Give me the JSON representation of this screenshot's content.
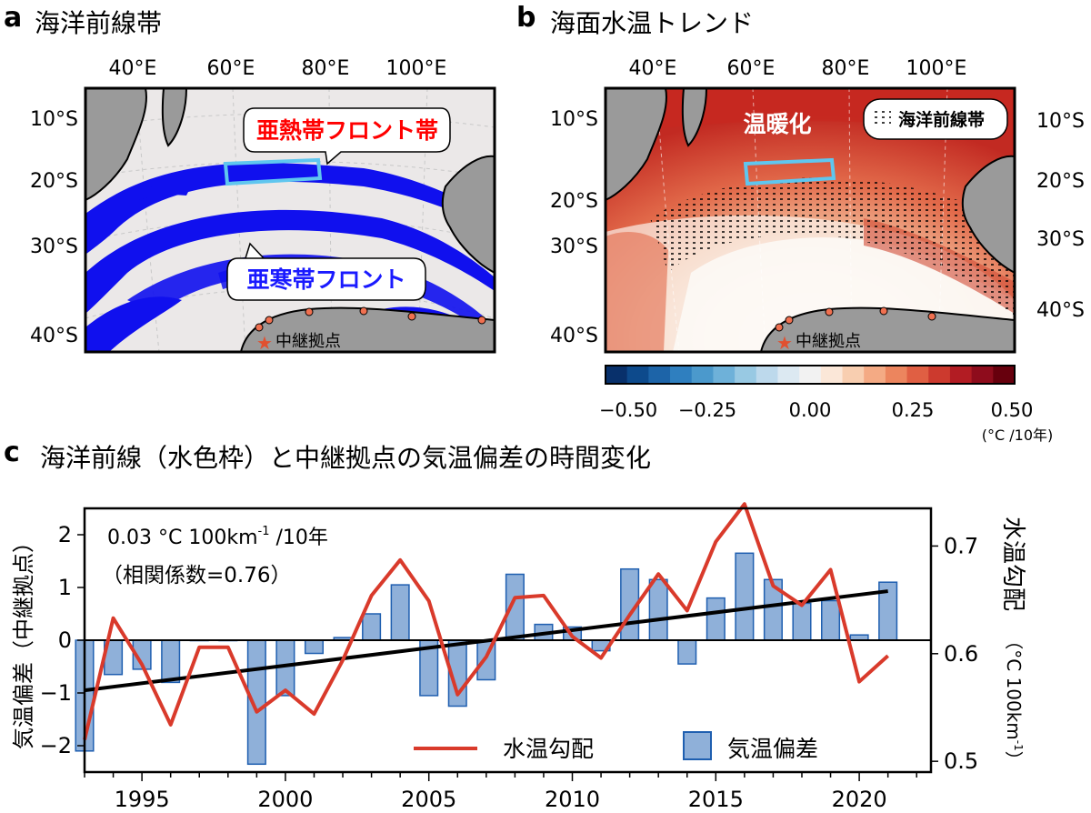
{
  "panel_a": {
    "label": "a",
    "title": "海洋前線帯",
    "lon_ticks": [
      "40°E",
      "60°E",
      "80°E",
      "100°E"
    ],
    "lat_ticks": [
      "10°S",
      "20°S",
      "30°S",
      "40°S"
    ],
    "callout_subtropical": "亜熱帯フロント帯",
    "callout_subantarctic": "亜寒帯フロント",
    "relay_label": "中継拠点",
    "colors": {
      "front": "#1010ee",
      "land": "#9a9a9a",
      "ocean": "#ebe8e8",
      "frame": "#5fc6ef",
      "subtropical_text": "#ff0000"
    }
  },
  "panel_b": {
    "label": "b",
    "title": "海面水温トレンド",
    "lon_ticks": [
      "40°E",
      "60°E",
      "80°E",
      "100°E"
    ],
    "lat_ticks": [
      "10°S",
      "20°S",
      "30°S",
      "40°S"
    ],
    "warming_label": "温暖化",
    "legend_label": "海洋前線帯",
    "relay_label": "中継拠点",
    "colorbar": {
      "ticks": [
        "−0.50",
        "−0.25",
        "0.00",
        "0.25",
        "0.50"
      ],
      "unit": "(°C /10年)",
      "range": [
        -0.5,
        0.5
      ],
      "colors": [
        "#08306b",
        "#0d4a8c",
        "#1d64a8",
        "#2f7fbf",
        "#4b99cc",
        "#6eb1d9",
        "#98c9e3",
        "#bdd9ec",
        "#dce9f2",
        "#f2f2f2",
        "#fbe7d8",
        "#f8ceb0",
        "#f4aa84",
        "#ec855e",
        "#e05f43",
        "#cc3a2e",
        "#b21c23",
        "#8e0c1c",
        "#67000d"
      ]
    }
  },
  "panel_c": {
    "label": "c",
    "title": "海洋前線（水色枠）と中継拠点の気温偏差の時間変化",
    "annotation_trend": "0.03 °C 100km",
    "annotation_trend_sup": "-1",
    "annotation_trend_tail": " /10年",
    "annotation_corr": "（相関係数=0.76）",
    "ylabel_left": "気温偏差（中継拠点）",
    "ylabel_right": "水温勾配",
    "ylabel_right_unit": "（°C 100km",
    "ylabel_right_unit_sup": "-1",
    "ylabel_right_unit_tail": "）",
    "legend_line": "水温勾配",
    "legend_bar": "気温偏差"
  },
  "chart_data": {
    "type": "bar",
    "x": [
      1993,
      1994,
      1995,
      1996,
      1997,
      1998,
      1999,
      2000,
      2001,
      2002,
      2003,
      2004,
      2005,
      2006,
      2007,
      2008,
      2009,
      2010,
      2011,
      2012,
      2013,
      2014,
      2015,
      2016,
      2017,
      2018,
      2019,
      2020,
      2021
    ],
    "xlim": [
      1993,
      2022.5
    ],
    "x_ticks": [
      "1995",
      "2000",
      "2005",
      "2010",
      "2015",
      "2020"
    ],
    "y_left_ticks": [
      "2",
      "1",
      "0",
      "−1",
      "−2"
    ],
    "ylim_left": [
      -2.5,
      2.5
    ],
    "y_right_ticks": [
      "0.7",
      "0.6",
      "0.5"
    ],
    "ylim_right": [
      0.49,
      0.735
    ],
    "series": [
      {
        "name": "気温偏差",
        "axis": "left",
        "type": "bar",
        "color": "#8fb0d9",
        "edge": "#1f5fb0",
        "values": [
          -2.1,
          -0.65,
          -0.55,
          -0.8,
          0.0,
          0.0,
          -2.35,
          -1.05,
          -0.25,
          0.05,
          0.5,
          1.05,
          -1.05,
          -1.25,
          -0.75,
          1.25,
          0.3,
          0.25,
          -0.2,
          1.35,
          1.15,
          -0.45,
          0.8,
          1.65,
          1.15,
          0.7,
          0.75,
          0.1,
          1.1
        ]
      },
      {
        "name": "水温勾配",
        "axis": "right",
        "type": "line",
        "color": "#d93a2b",
        "values": [
          0.52,
          0.633,
          0.59,
          0.534,
          0.606,
          0.606,
          0.546,
          0.566,
          0.544,
          0.594,
          0.654,
          0.687,
          0.649,
          0.562,
          0.597,
          0.652,
          0.654,
          0.616,
          0.596,
          0.636,
          0.674,
          0.64,
          0.704,
          0.739,
          0.663,
          0.645,
          0.678,
          0.574,
          0.598
        ]
      },
      {
        "type": "trend",
        "axis": "left",
        "color": "#000000",
        "values": [
          -0.95,
          -0.88,
          -0.81,
          -0.74,
          -0.67,
          -0.6,
          -0.53,
          -0.46,
          -0.39,
          -0.32,
          -0.25,
          -0.18,
          -0.11,
          -0.04,
          0.03,
          0.1,
          0.17,
          0.24,
          0.31,
          0.38,
          0.45,
          0.52,
          0.59,
          0.66,
          0.73,
          0.8,
          0.87,
          0.94,
          0.93
        ]
      }
    ]
  }
}
